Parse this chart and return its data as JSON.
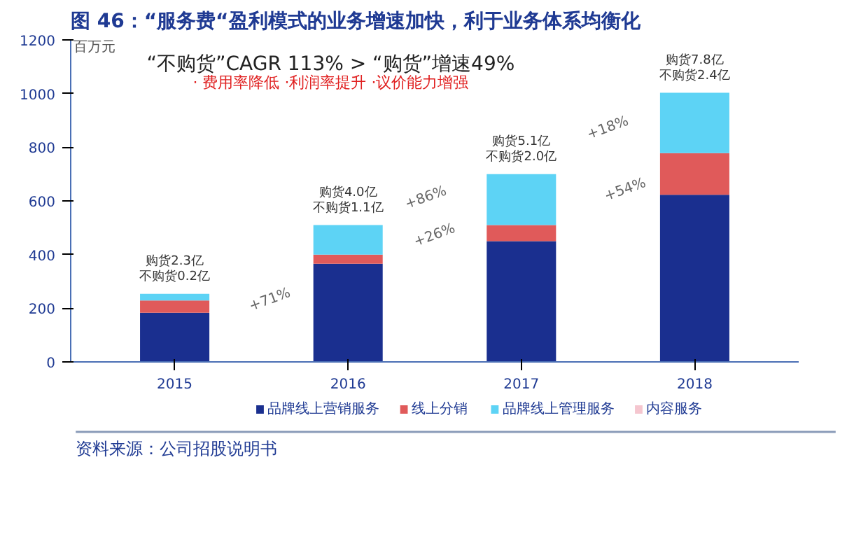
{
  "chart_data": {
    "type": "bar",
    "stacked": true,
    "title": "图 46：“服务费“盈利模式的业务增速加快，利于业务体系均衡化",
    "ylabel": "百万元",
    "categories": [
      "2015",
      "2016",
      "2017",
      "2018"
    ],
    "series": [
      {
        "name": "品牌线上营销服务",
        "color": "#1a2f8f",
        "values": [
          183,
          366,
          450,
          623
        ]
      },
      {
        "name": "线上分销",
        "color": "#e05a5a",
        "values": [
          46,
          34,
          60,
          155
        ]
      },
      {
        "name": "品牌线上管理服务",
        "color": "#5dd3f5",
        "values": [
          25,
          110,
          190,
          225
        ]
      },
      {
        "name": "内容服务",
        "color": "#f5c6cf",
        "values": [
          null,
          null,
          null,
          null
        ]
      }
    ],
    "ylim": [
      0,
      1200
    ],
    "yticks": [
      0,
      200,
      400,
      600,
      800,
      1000,
      1200
    ],
    "grid": false,
    "legend": "bottom",
    "annotations": [
      "“不购货”CAGR 113% > “购货”增速49%",
      "· 费用率降低 ·利润率提升 ·议价能力增强",
      {
        "text": "购货2.3亿",
        "x": "2015",
        "y": 254
      },
      {
        "text": "不购货0.2亿",
        "x": "2015",
        "y": 254
      },
      {
        "text": "购货4.0亿",
        "x": "2016",
        "y": 510
      },
      {
        "text": "不购货1.1亿",
        "x": "2016",
        "y": 510
      },
      {
        "text": "购货5.1亿",
        "x": "2017",
        "y": 700
      },
      {
        "text": "不购货2.0亿",
        "x": "2017",
        "y": 700
      },
      {
        "text": "购货7.8亿",
        "x": "2018",
        "y": 1003
      },
      {
        "text": "不购货2.4亿",
        "x": "2018",
        "y": 1003
      },
      "+71%",
      "+86%",
      "+26%",
      "+18%",
      "+54%",
      "资料来源：公司招股说明书"
    ]
  }
}
